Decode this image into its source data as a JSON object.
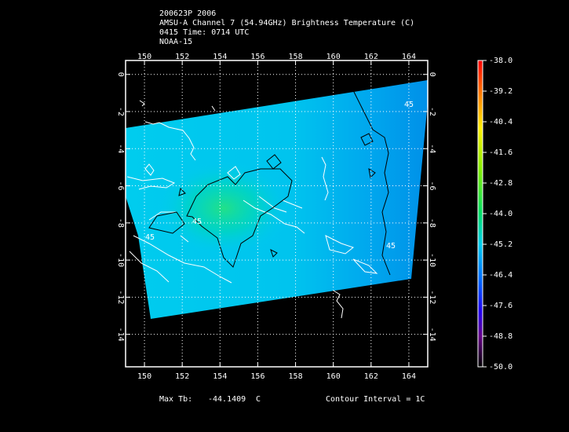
{
  "header": {
    "lines": [
      "200623P 2006",
      "AMSU-A Channel 7 (54.94GHz) Brightness Temperature (C)",
      "0415 Time: 0714 UTC",
      "NOAA-15"
    ]
  },
  "map": {
    "xlim": [
      149,
      165
    ],
    "ylim": [
      -15.75,
      0.75
    ],
    "xticks": [
      150,
      152,
      154,
      156,
      158,
      160,
      162,
      164
    ],
    "yticks": [
      0,
      -2,
      -4,
      -6,
      -8,
      -10,
      -12,
      -14
    ],
    "grid": true,
    "contour_labels": [
      "45",
      "45",
      "45",
      "45"
    ]
  },
  "colorbar": {
    "lim": [
      -50,
      -38
    ],
    "ticks": [
      {
        "value": -38,
        "label": "-38.0"
      },
      {
        "value": -39.2,
        "label": "-39.2"
      },
      {
        "value": -40.4,
        "label": "-40.4"
      },
      {
        "value": -41.6,
        "label": "-41.6"
      },
      {
        "value": -42.8,
        "label": "-42.8"
      },
      {
        "value": -44,
        "label": "-44.0"
      },
      {
        "value": -45.2,
        "label": "-45.2"
      },
      {
        "value": -46.4,
        "label": "-46.4"
      },
      {
        "value": -47.6,
        "label": "-47.6"
      },
      {
        "value": -48.8,
        "label": "-48.8"
      },
      {
        "value": -50,
        "label": "-50.0"
      }
    ]
  },
  "footer": {
    "max_tb_label": "Max Tb:",
    "max_tb_value": -44.1409,
    "unit": "C",
    "contour_interval": "Contour Interval = 1C"
  }
}
